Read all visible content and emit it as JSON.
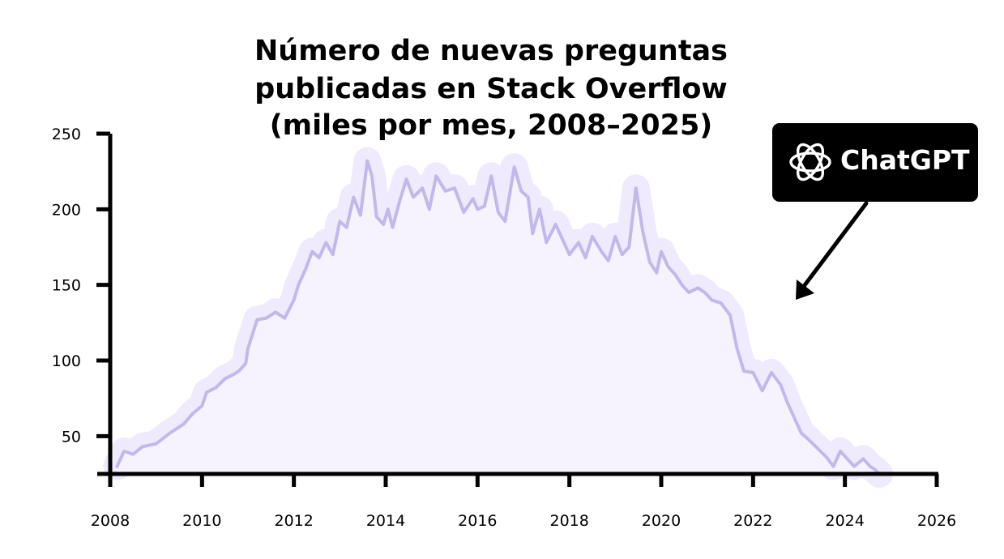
{
  "chart_data": {
    "type": "area",
    "title_lines": [
      "Número de nuevas preguntas",
      "publicadas en Stack Overflow",
      "(miles por mes, 2008–2025)"
    ],
    "xlabel": "",
    "ylabel": "",
    "xlim": [
      2008,
      2026
    ],
    "ylim": [
      25,
      250
    ],
    "x_ticks": [
      2008,
      2010,
      2012,
      2014,
      2016,
      2018,
      2020,
      2022,
      2024,
      2026
    ],
    "y_ticks": [
      50,
      100,
      150,
      200,
      250
    ],
    "grid": false,
    "colors": {
      "line": "#c4b8ea",
      "fill": "#f6f3ff",
      "glow": "#efeafd",
      "axis": "#000000",
      "annotation": "#000000"
    },
    "series": [
      {
        "x": [
          2008.15,
          2008.3,
          2008.5,
          2008.7,
          2009.0,
          2009.3,
          2009.6,
          2009.8,
          2010.0,
          2010.1,
          2010.3,
          2010.5,
          2010.7,
          2010.8,
          2010.95,
          2011.0,
          2011.2,
          2011.4,
          2011.6,
          2011.8,
          2012.0,
          2012.1,
          2012.25,
          2012.4,
          2012.55,
          2012.7,
          2012.85,
          2013.0,
          2013.15,
          2013.3,
          2013.45,
          2013.6,
          2013.7,
          2013.8,
          2013.95,
          2014.05,
          2014.15,
          2014.3,
          2014.45,
          2014.6,
          2014.8,
          2014.95,
          2015.1,
          2015.3,
          2015.5,
          2015.7,
          2015.9,
          2016.0,
          2016.15,
          2016.3,
          2016.45,
          2016.6,
          2016.8,
          2016.95,
          2017.1,
          2017.2,
          2017.35,
          2017.5,
          2017.7,
          2017.85,
          2018.0,
          2018.2,
          2018.35,
          2018.5,
          2018.7,
          2018.85,
          2019.0,
          2019.15,
          2019.3,
          2019.45,
          2019.6,
          2019.75,
          2019.9,
          2020.0,
          2020.15,
          2020.3,
          2020.45,
          2020.6,
          2020.8,
          2020.95,
          2021.1,
          2021.3,
          2021.5,
          2021.65,
          2021.8,
          2022.0,
          2022.2,
          2022.4,
          2022.6,
          2022.75,
          2022.9,
          2023.05,
          2023.2,
          2023.4,
          2023.6,
          2023.75,
          2023.9,
          2024.05,
          2024.2,
          2024.4,
          2024.55,
          2024.65,
          2024.75
        ],
        "y": [
          30,
          40,
          38,
          43,
          45,
          52,
          58,
          65,
          70,
          79,
          82,
          88,
          91,
          93,
          98,
          108,
          127,
          128,
          132,
          128,
          140,
          150,
          160,
          172,
          168,
          178,
          170,
          192,
          188,
          208,
          196,
          232,
          222,
          195,
          190,
          200,
          188,
          205,
          220,
          208,
          214,
          200,
          222,
          212,
          214,
          198,
          207,
          200,
          202,
          222,
          198,
          192,
          228,
          212,
          208,
          184,
          200,
          178,
          190,
          180,
          170,
          178,
          168,
          182,
          172,
          166,
          182,
          170,
          175,
          214,
          185,
          165,
          158,
          172,
          162,
          157,
          150,
          145,
          148,
          145,
          140,
          138,
          130,
          108,
          93,
          92,
          80,
          92,
          84,
          72,
          62,
          52,
          48,
          42,
          36,
          30,
          40,
          35,
          30,
          35,
          30,
          28,
          25
        ]
      }
    ],
    "annotation": {
      "label": "ChatGPT",
      "icon": "openai-logo-icon",
      "points_to_x": 2022.9,
      "points_to_y": 140
    }
  }
}
